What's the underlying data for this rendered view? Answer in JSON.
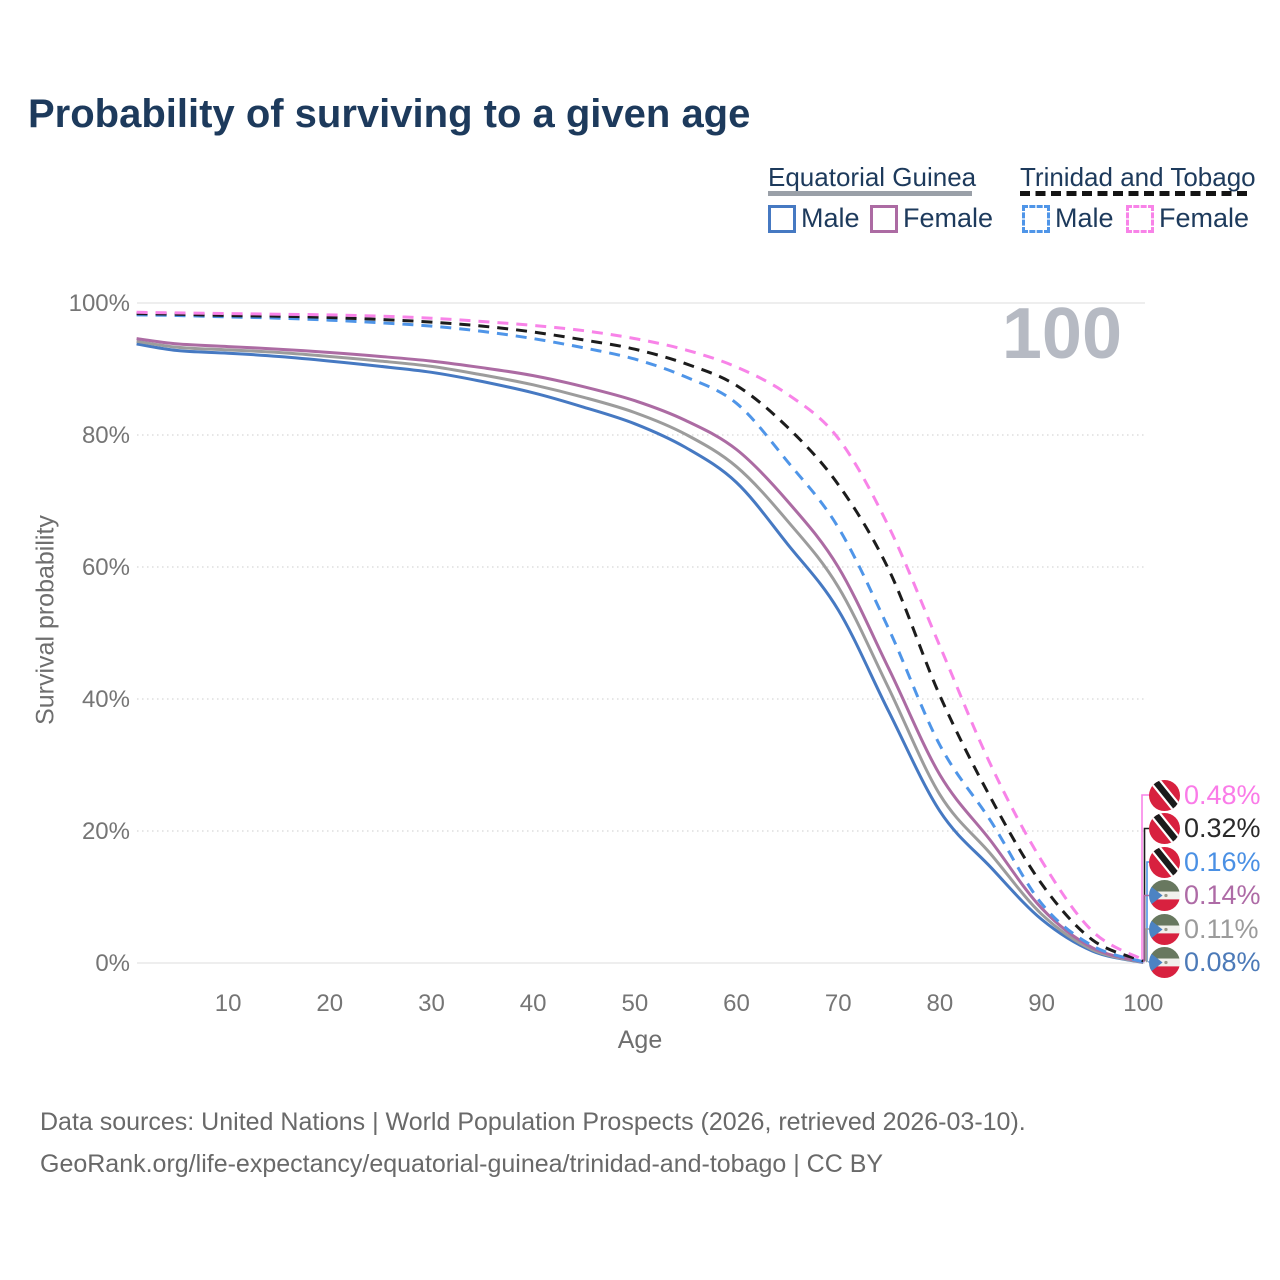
{
  "page": {
    "title": "Probability of surviving to a given age",
    "watermark_age": "100"
  },
  "legend": {
    "groups": [
      {
        "title": "Equatorial Guinea",
        "line_style": "solid",
        "underline_color": "#9aa0a8",
        "items": [
          {
            "label": "Male",
            "color": "#4679c2"
          },
          {
            "label": "Female",
            "color": "#ac6ba3"
          }
        ]
      },
      {
        "title": "Trinidad and Tobago",
        "line_style": "dashed",
        "underline_color": "#141414",
        "items": [
          {
            "label": "Male",
            "color": "#4f95e8"
          },
          {
            "label": "Female",
            "color": "#f883e8"
          }
        ]
      }
    ]
  },
  "end_labels": [
    {
      "value": "0.48%",
      "color": "#fa7be8",
      "flag": "trinidad-and-tobago"
    },
    {
      "value": "0.32%",
      "color": "#2a2a2a",
      "flag": "trinidad-and-tobago"
    },
    {
      "value": "0.16%",
      "color": "#4a90e4",
      "flag": "trinidad-and-tobago"
    },
    {
      "value": "0.14%",
      "color": "#ae6ba6",
      "flag": "equatorial-guinea"
    },
    {
      "value": "0.11%",
      "color": "#9b9b9b",
      "flag": "equatorial-guinea"
    },
    {
      "value": "0.08%",
      "color": "#4c7ab8",
      "flag": "equatorial-guinea"
    }
  ],
  "footer": {
    "line1": "Data sources: United Nations | World Population Prospects (2026, retrieved 2026-03-10).",
    "line2": "GeoRank.org/life-expectancy/equatorial-guinea/trinidad-and-tobago | CC BY"
  },
  "chart_data": {
    "type": "line",
    "title": "Probability of surviving to a given age",
    "xlabel": "Age",
    "ylabel": "Survival probability",
    "xlim": [
      1,
      100
    ],
    "ylim": [
      0,
      100
    ],
    "x_ticks": [
      10,
      20,
      30,
      40,
      50,
      60,
      70,
      80,
      90,
      100
    ],
    "y_ticks": [
      0,
      20,
      40,
      60,
      80,
      100
    ],
    "y_tick_suffix": "%",
    "grid": "horizontal",
    "legend_position": "top-right",
    "ages": [
      1,
      5,
      10,
      15,
      20,
      25,
      30,
      35,
      40,
      45,
      50,
      55,
      60,
      65,
      70,
      75,
      80,
      85,
      90,
      95,
      100
    ],
    "series": [
      {
        "name": "Equatorial Guinea Male",
        "country": "Equatorial Guinea",
        "sex": "Male",
        "style": "solid",
        "color": "#4679c2",
        "end_value_label": "0.08%",
        "values": [
          93.8,
          92.8,
          92.4,
          91.9,
          91.2,
          90.4,
          89.5,
          88.1,
          86.4,
          84.2,
          81.7,
          78.1,
          72.8,
          63.5,
          53.5,
          38.0,
          23.0,
          14.5,
          6.6,
          1.8,
          0.08
        ]
      },
      {
        "name": "Equatorial Guinea Both sexes",
        "country": "Equatorial Guinea",
        "sex": "Both",
        "style": "solid",
        "color": "#9c9c9c",
        "end_value_label": "0.11%",
        "values": [
          94.2,
          93.3,
          92.9,
          92.5,
          91.9,
          91.2,
          90.4,
          89.1,
          87.6,
          85.7,
          83.4,
          80.1,
          75.2,
          67.0,
          57.0,
          41.5,
          25.5,
          16.5,
          7.4,
          2.0,
          0.11
        ]
      },
      {
        "name": "Equatorial Guinea Female",
        "country": "Equatorial Guinea",
        "sex": "Female",
        "style": "solid",
        "color": "#ac6ba3",
        "end_value_label": "0.14%",
        "values": [
          94.6,
          93.8,
          93.4,
          93.0,
          92.5,
          91.9,
          91.2,
          90.2,
          89.0,
          87.3,
          85.2,
          82.2,
          77.8,
          70.0,
          60.0,
          44.5,
          28.5,
          18.5,
          8.3,
          2.3,
          0.14
        ]
      },
      {
        "name": "Trinidad and Tobago Male",
        "country": "Trinidad and Tobago",
        "sex": "Male",
        "style": "dashed",
        "color": "#4f95e8",
        "end_value_label": "0.16%",
        "values": [
          98.2,
          98.1,
          97.9,
          97.7,
          97.4,
          97.0,
          96.5,
          95.7,
          94.6,
          93.2,
          91.5,
          88.8,
          84.8,
          76.0,
          66.0,
          50.5,
          33.0,
          21.5,
          9.0,
          2.6,
          0.16
        ]
      },
      {
        "name": "Trinidad and Tobago Both sexes",
        "country": "Trinidad and Tobago",
        "sex": "Both",
        "style": "dashed",
        "color": "#1c1c1c",
        "end_value_label": "0.32%",
        "values": [
          98.4,
          98.3,
          98.1,
          98.0,
          97.8,
          97.5,
          97.1,
          96.5,
          95.6,
          94.4,
          93.0,
          90.8,
          87.5,
          81.2,
          72.5,
          59.5,
          40.5,
          25.0,
          12.0,
          3.5,
          0.32
        ]
      },
      {
        "name": "Trinidad and Tobago Female",
        "country": "Trinidad and Tobago",
        "sex": "Female",
        "style": "dashed",
        "color": "#f883e8",
        "end_value_label": "0.48%",
        "values": [
          98.6,
          98.5,
          98.4,
          98.3,
          98.2,
          98.0,
          97.7,
          97.2,
          96.6,
          95.8,
          94.6,
          92.9,
          90.3,
          86.2,
          79.5,
          66.0,
          48.0,
          30.0,
          15.5,
          4.8,
          0.48
        ]
      }
    ]
  }
}
